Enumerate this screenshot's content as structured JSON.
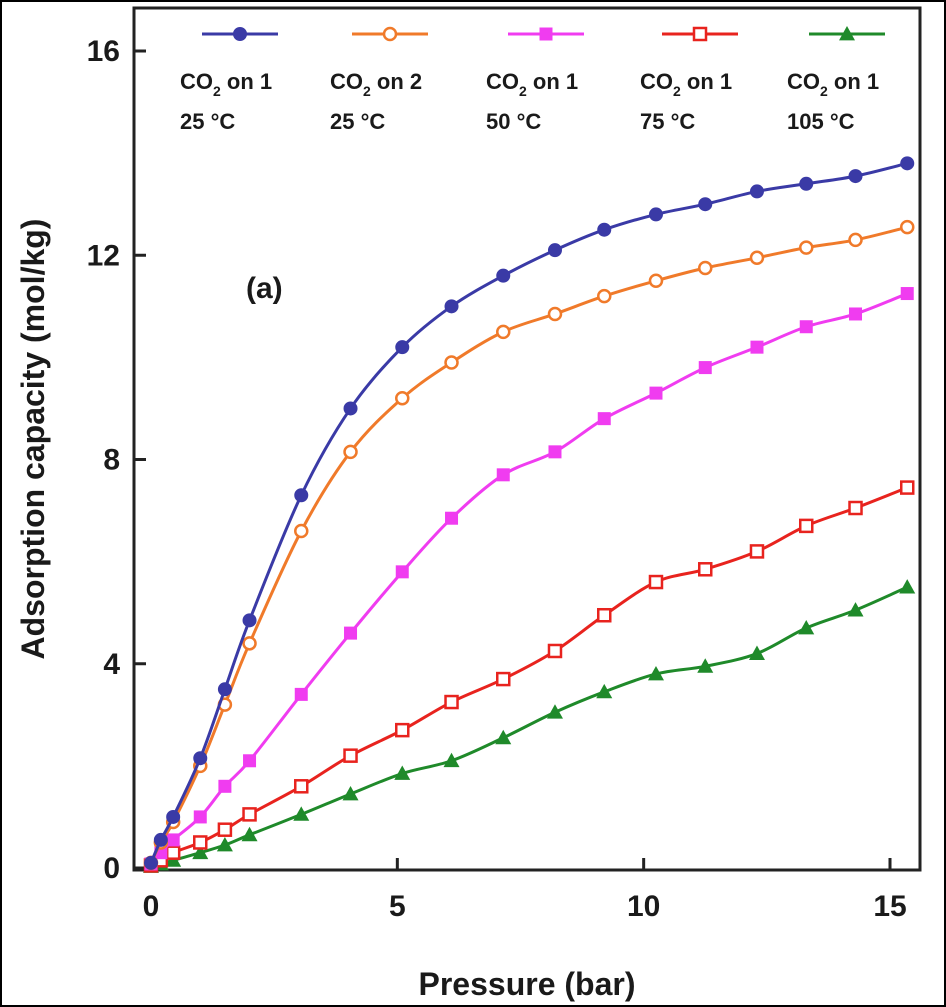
{
  "chart_data": {
    "type": "line",
    "title": "",
    "panel_label": "(a)",
    "xlabel": "Pressure (bar)",
    "ylabel": "Adsorption capacity (mol/kg)",
    "xlim": [
      -0.3,
      15.8
    ],
    "ylim": [
      0,
      16.8
    ],
    "xticks": [
      0,
      5,
      10,
      15
    ],
    "yticks": [
      0,
      4,
      8,
      12,
      16
    ],
    "grid": false,
    "legend_position": "top",
    "series": [
      {
        "name": "CO2 on 1 25 °C",
        "legend_parts": [
          "CO",
          "2",
          " on 1",
          "25 °C"
        ],
        "color": "#3a3aa6",
        "marker": "filled-circle",
        "x": [
          0,
          0.2,
          0.45,
          1.0,
          1.5,
          2.0,
          3.05,
          4.05,
          5.1,
          6.1,
          7.15,
          8.2,
          9.2,
          10.25,
          11.25,
          12.3,
          13.3,
          14.3,
          15.35
        ],
        "y": [
          0.1,
          0.55,
          1.0,
          2.15,
          3.5,
          4.85,
          7.3,
          9.0,
          10.2,
          11.0,
          11.6,
          12.1,
          12.5,
          12.8,
          13.0,
          13.25,
          13.4,
          13.55,
          13.8
        ]
      },
      {
        "name": "CO2 on 2 25 °C",
        "legend_parts": [
          "CO",
          "2",
          " on 2",
          "25 °C"
        ],
        "color": "#f07a2a",
        "marker": "open-circle",
        "x": [
          0,
          0.2,
          0.45,
          1.0,
          1.5,
          2.0,
          3.05,
          4.05,
          5.1,
          6.1,
          7.15,
          8.2,
          9.2,
          10.25,
          11.25,
          12.3,
          13.3,
          14.3,
          15.35
        ],
        "y": [
          0.1,
          0.5,
          0.9,
          2.0,
          3.2,
          4.4,
          6.6,
          8.15,
          9.2,
          9.9,
          10.5,
          10.85,
          11.2,
          11.5,
          11.75,
          11.95,
          12.15,
          12.3,
          12.55
        ]
      },
      {
        "name": "CO2 on 1 50 °C",
        "legend_parts": [
          "CO",
          "2",
          " on 1",
          "50 °C"
        ],
        "color": "#f03cf0",
        "marker": "filled-square",
        "x": [
          0,
          0.2,
          0.45,
          1.0,
          1.5,
          2.0,
          3.05,
          4.05,
          5.1,
          6.1,
          7.15,
          8.2,
          9.2,
          10.25,
          11.25,
          12.3,
          13.3,
          14.3,
          15.35
        ],
        "y": [
          0.08,
          0.3,
          0.55,
          1.0,
          1.6,
          2.1,
          3.4,
          4.6,
          5.8,
          6.85,
          7.7,
          8.15,
          8.8,
          9.3,
          9.8,
          10.2,
          10.6,
          10.85,
          11.25
        ]
      },
      {
        "name": "CO2 on 1 75 °C",
        "legend_parts": [
          "CO",
          "2",
          " on 1",
          "75 °C"
        ],
        "color": "#e8231e",
        "marker": "open-square",
        "x": [
          0,
          0.2,
          0.45,
          1.0,
          1.5,
          2.0,
          3.05,
          4.05,
          5.1,
          6.1,
          7.15,
          8.2,
          9.2,
          10.25,
          11.25,
          12.3,
          13.3,
          14.3,
          15.35
        ],
        "y": [
          0.05,
          0.15,
          0.3,
          0.5,
          0.75,
          1.05,
          1.6,
          2.2,
          2.7,
          3.25,
          3.7,
          4.25,
          4.95,
          5.6,
          5.85,
          6.2,
          6.7,
          7.05,
          7.45
        ]
      },
      {
        "name": "CO2 on 1 105 °C",
        "legend_parts": [
          "CO",
          "2",
          " on 1",
          "105 °C"
        ],
        "color": "#1f8a2a",
        "marker": "filled-triangle",
        "x": [
          0,
          0.2,
          0.45,
          1.0,
          1.5,
          2.0,
          3.05,
          4.05,
          5.1,
          6.1,
          7.15,
          8.2,
          9.2,
          10.25,
          11.25,
          12.3,
          13.3,
          14.3,
          15.35
        ],
        "y": [
          0.03,
          0.08,
          0.15,
          0.3,
          0.45,
          0.65,
          1.05,
          1.45,
          1.85,
          2.1,
          2.55,
          3.05,
          3.45,
          3.8,
          3.95,
          4.2,
          4.7,
          5.05,
          5.5
        ]
      }
    ]
  }
}
